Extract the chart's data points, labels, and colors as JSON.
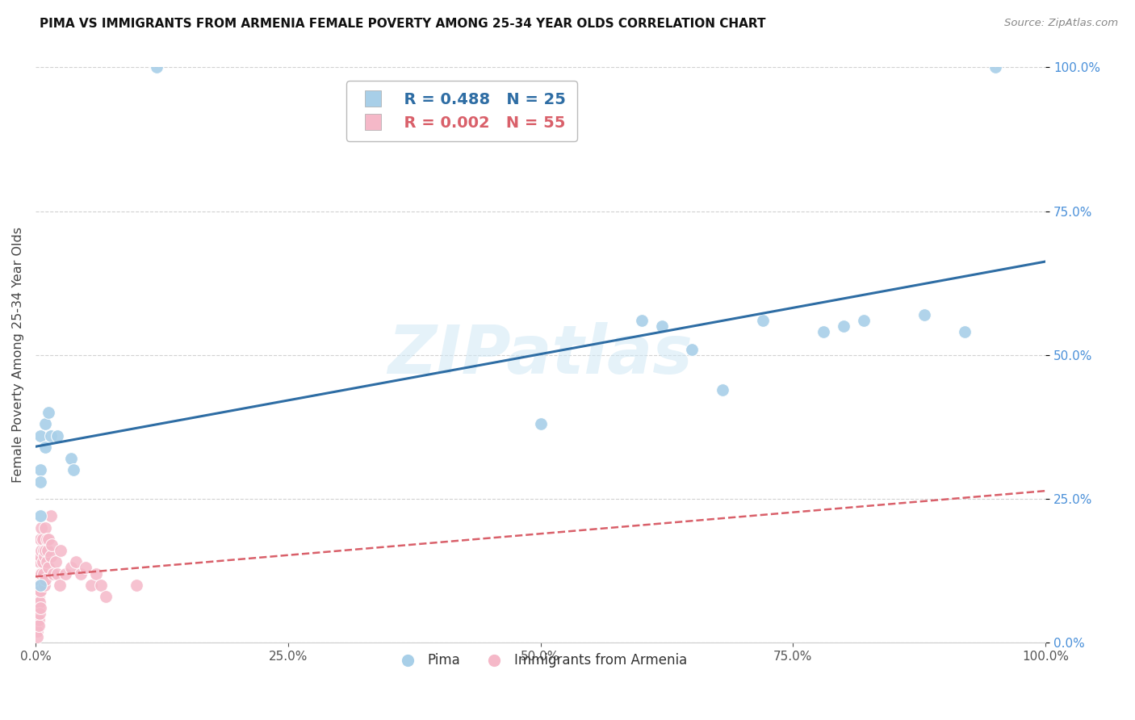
{
  "title": "PIMA VS IMMIGRANTS FROM ARMENIA FEMALE POVERTY AMONG 25-34 YEAR OLDS CORRELATION CHART",
  "source": "Source: ZipAtlas.com",
  "ylabel": "Female Poverty Among 25-34 Year Olds",
  "xlim": [
    0,
    1.0
  ],
  "ylim": [
    0,
    1.0
  ],
  "pima_R": "R = 0.488",
  "pima_N": "N = 25",
  "armenia_R": "R = 0.002",
  "armenia_N": "N = 55",
  "pima_color": "#a8cfe8",
  "armenia_color": "#f5b8c8",
  "pima_line_color": "#2e6da4",
  "armenia_line_color": "#d9606a",
  "pima_line_color_tick": "#4a90d9",
  "background_color": "#ffffff",
  "watermark": "ZIPatlas",
  "pima_x": [
    0.005,
    0.005,
    0.005,
    0.005,
    0.005,
    0.01,
    0.01,
    0.013,
    0.015,
    0.022,
    0.035,
    0.038,
    0.5,
    0.6,
    0.62,
    0.65,
    0.68,
    0.72,
    0.78,
    0.8,
    0.82,
    0.88,
    0.92,
    0.95,
    0.12
  ],
  "pima_y": [
    0.3,
    0.36,
    0.28,
    0.22,
    0.1,
    0.38,
    0.34,
    0.4,
    0.36,
    0.36,
    0.32,
    0.3,
    0.38,
    0.56,
    0.55,
    0.51,
    0.44,
    0.56,
    0.54,
    0.55,
    0.56,
    0.57,
    0.54,
    1.0,
    1.0
  ],
  "armenia_x": [
    0.002,
    0.002,
    0.002,
    0.002,
    0.002,
    0.003,
    0.003,
    0.003,
    0.003,
    0.003,
    0.004,
    0.004,
    0.004,
    0.004,
    0.004,
    0.005,
    0.005,
    0.005,
    0.005,
    0.005,
    0.006,
    0.006,
    0.006,
    0.007,
    0.007,
    0.008,
    0.008,
    0.009,
    0.009,
    0.01,
    0.01,
    0.01,
    0.011,
    0.011,
    0.012,
    0.013,
    0.013,
    0.015,
    0.015,
    0.016,
    0.018,
    0.02,
    0.022,
    0.024,
    0.025,
    0.03,
    0.035,
    0.04,
    0.045,
    0.05,
    0.055,
    0.06,
    0.065,
    0.07,
    0.1
  ],
  "armenia_y": [
    0.06,
    0.04,
    0.03,
    0.02,
    0.01,
    0.1,
    0.08,
    0.06,
    0.04,
    0.03,
    0.14,
    0.12,
    0.09,
    0.07,
    0.05,
    0.18,
    0.15,
    0.12,
    0.09,
    0.06,
    0.2,
    0.16,
    0.12,
    0.18,
    0.14,
    0.16,
    0.12,
    0.15,
    0.1,
    0.2,
    0.16,
    0.11,
    0.18,
    0.14,
    0.16,
    0.18,
    0.13,
    0.22,
    0.15,
    0.17,
    0.12,
    0.14,
    0.12,
    0.1,
    0.16,
    0.12,
    0.13,
    0.14,
    0.12,
    0.13,
    0.1,
    0.12,
    0.1,
    0.08,
    0.1
  ]
}
